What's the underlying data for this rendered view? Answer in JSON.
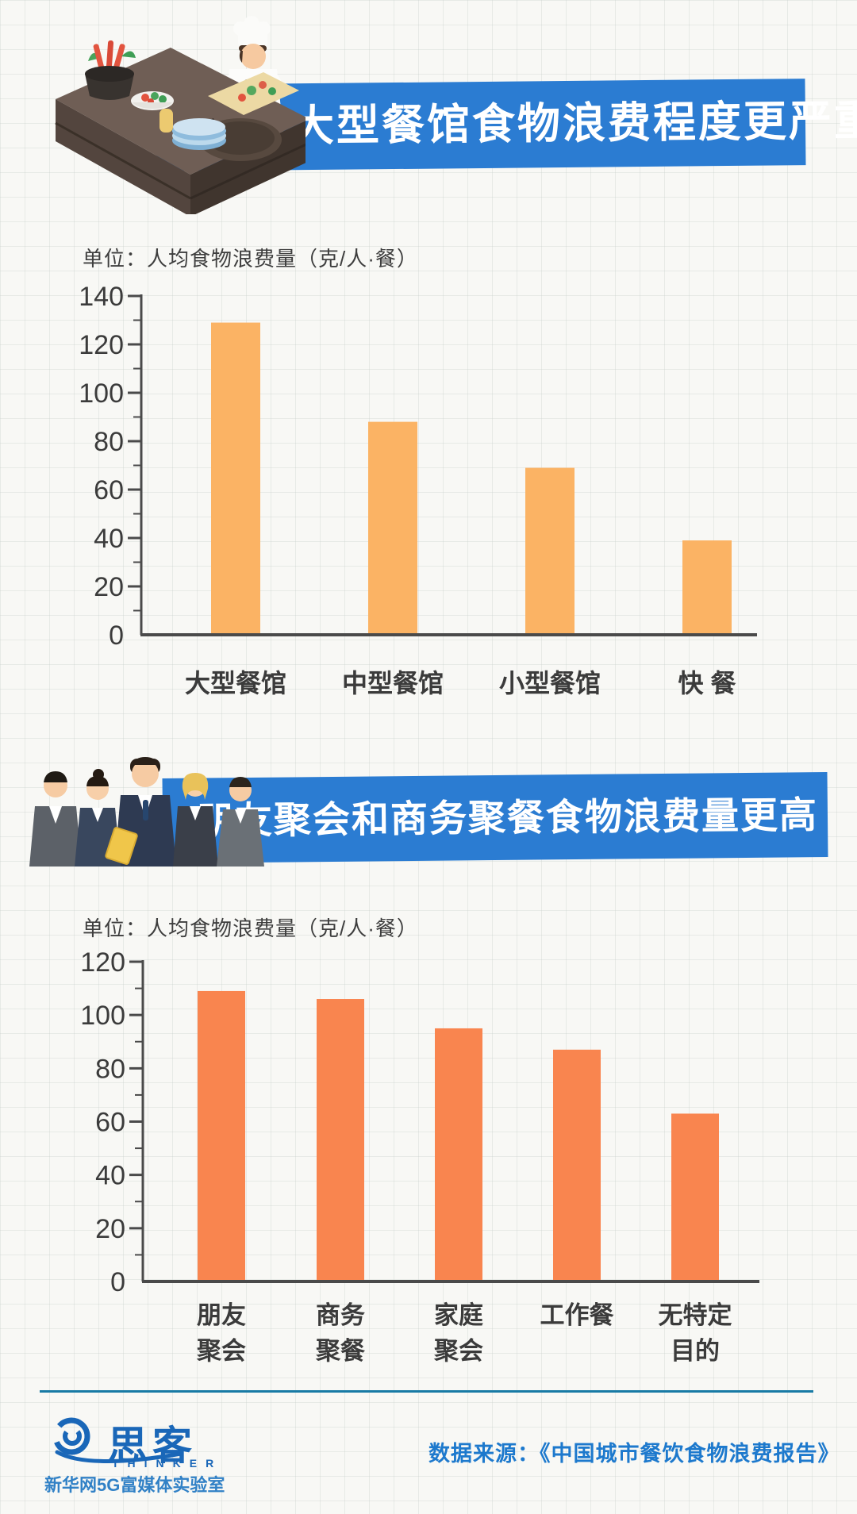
{
  "banner1": {
    "title": "大型餐馆食物浪费程度更严重"
  },
  "banner2": {
    "title": "朋友聚会和商务聚餐食物浪费量更高"
  },
  "chart1": {
    "unit_label": "单位：人均食物浪费量（克/人·餐）",
    "label_lines": [
      [
        "大型餐馆"
      ],
      [
        "中型餐馆"
      ],
      [
        "小型餐馆"
      ],
      [
        "快 餐"
      ]
    ]
  },
  "chart2": {
    "unit_label": "单位：人均食物浪费量（克/人·餐）",
    "label_lines": [
      [
        "朋友",
        "聚会"
      ],
      [
        "商务",
        "聚餐"
      ],
      [
        "家庭",
        "聚会"
      ],
      [
        "工作餐"
      ],
      [
        "无特定",
        "目的"
      ]
    ]
  },
  "footer": {
    "logo_cn": "思客",
    "logo_en": "THINKER",
    "logo_subtitle": "新华网5G富媒体实验室",
    "source": "数据来源：《中国城市餐饮食物浪费报告》"
  },
  "colors": {
    "banner_blue": "#2b7cd2",
    "bar_orange_light": "#FBB364",
    "bar_orange_deep": "#F9854F",
    "axis": "#4a4a4a",
    "tick_text": "#3b3b3b",
    "divider_blue": "#187aa5",
    "source_blue": "#1d79cd",
    "logo_blue": "#1a67b8"
  },
  "chart_data": [
    {
      "type": "bar",
      "title": "大型餐馆食物浪费程度更严重",
      "unit": "克/人·餐",
      "categories": [
        "大型餐馆",
        "中型餐馆",
        "小型餐馆",
        "快餐"
      ],
      "values": [
        129,
        88,
        69,
        39
      ],
      "ylim": [
        0,
        140
      ],
      "tick_step": 20,
      "minor_tick_step": 10,
      "grid": false,
      "legend": "none",
      "bar_color": "#FBB364"
    },
    {
      "type": "bar",
      "title": "朋友聚会和商务聚餐食物浪费量更高",
      "unit": "克/人·餐",
      "categories": [
        "朋友聚会",
        "商务聚餐",
        "家庭聚会",
        "工作餐",
        "无特定目的"
      ],
      "values": [
        109,
        106,
        95,
        87,
        63
      ],
      "ylim": [
        0,
        120
      ],
      "tick_step": 20,
      "minor_tick_step": 10,
      "grid": false,
      "legend": "none",
      "bar_color": "#F9854F"
    }
  ]
}
